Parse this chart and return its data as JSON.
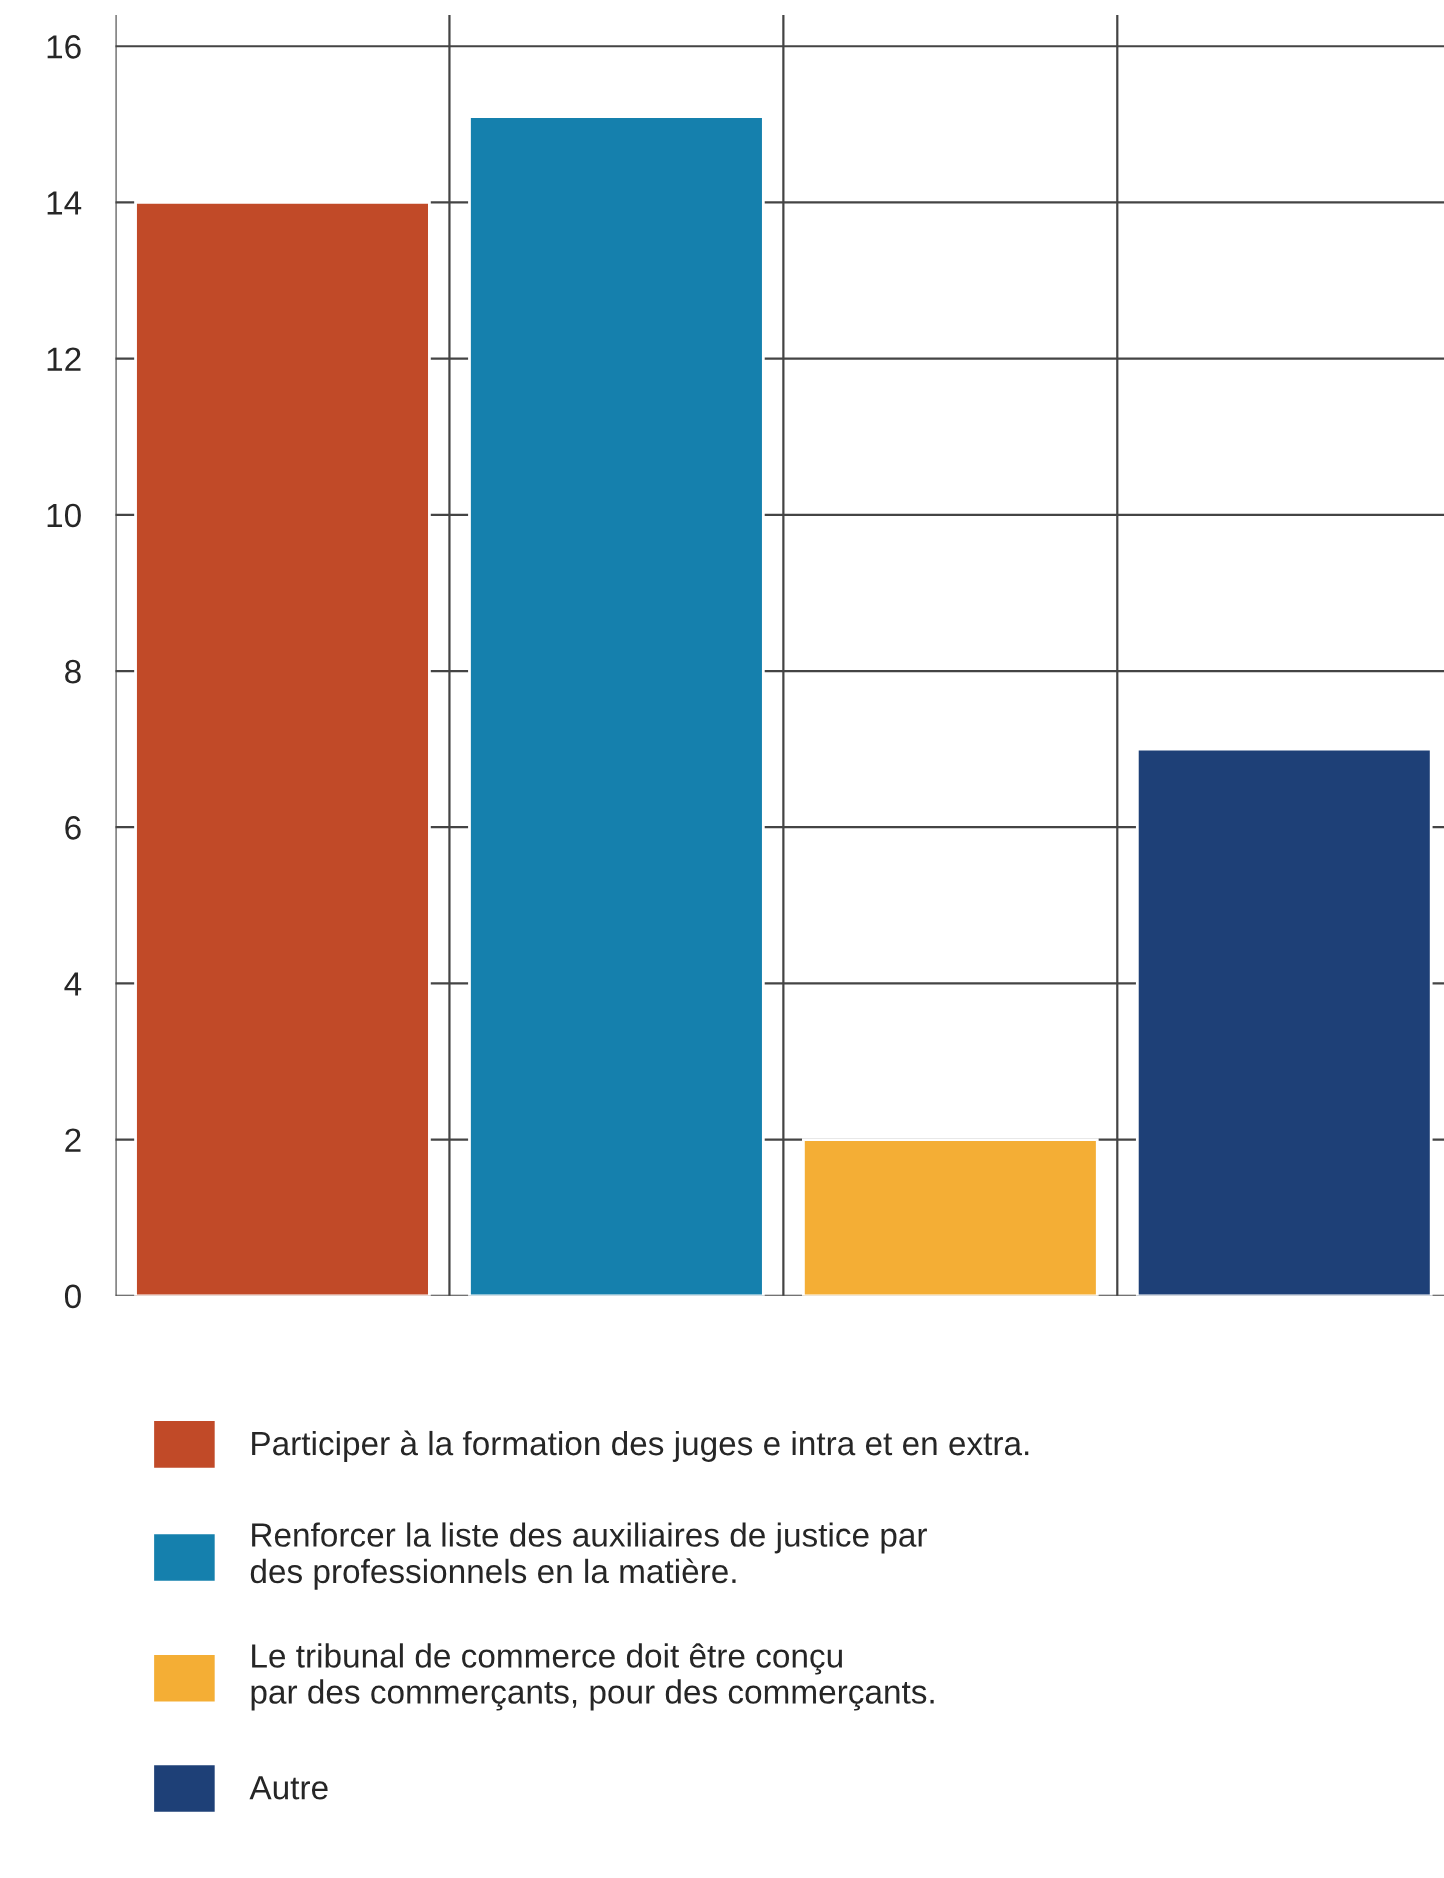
{
  "chart_data": {
    "type": "bar",
    "categories": [
      null,
      null,
      null,
      null
    ],
    "series": [
      {
        "name": "Participer à la formation des juges e intra et en extra.",
        "color": "#c14a28",
        "values": [
          14,
          null,
          null,
          null
        ]
      },
      {
        "name": "Renforcer la liste des auxiliaires de justice par\ndes professionnels en la matière.",
        "color": "#1580ad",
        "values": [
          null,
          15.1,
          null,
          null
        ]
      },
      {
        "name": "Le tribunal de commerce doit être conçu\npar des commerçants, pour des commerçants.",
        "color": "#f4ae35",
        "values": [
          null,
          null,
          2,
          null
        ]
      },
      {
        "name": "Autre",
        "color": "#1e4077",
        "values": [
          null,
          null,
          null,
          7
        ]
      }
    ],
    "ylim": [
      0,
      16.4
    ],
    "yticks": [
      0,
      2,
      4,
      6,
      8,
      10,
      12,
      14,
      16
    ],
    "grid": true,
    "legend": "bottom",
    "tick_labels": "y"
  }
}
